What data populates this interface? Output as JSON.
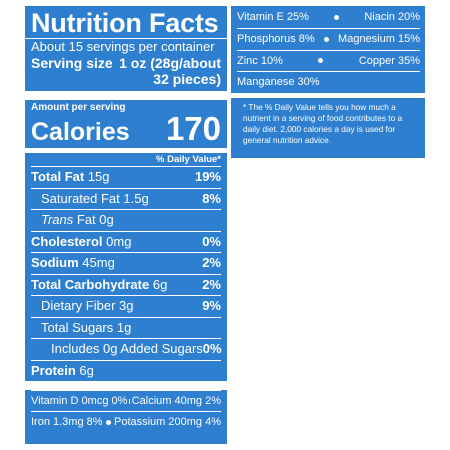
{
  "title": "Nutrition Facts",
  "servings": "About 15 servings per container",
  "serving_size": {
    "label": "Serving size",
    "value_line1": "1 oz (28g/about",
    "value_line2": "32 pieces)"
  },
  "amount_per_serving": "Amount per serving",
  "calories": {
    "label": "Calories",
    "value": "170"
  },
  "daily_value_header": "% Daily Value*",
  "nutrients": [
    {
      "label": "Total Fat",
      "amount": "15g",
      "dv": "19%"
    },
    {
      "label": "Saturated Fat",
      "amount": "1.5g",
      "dv": "8%"
    },
    {
      "label": "Trans",
      "amount": "Fat 0g",
      "dv": ""
    },
    {
      "label": "Cholesterol",
      "amount": "0mg",
      "dv": "0%"
    },
    {
      "label": "Sodium",
      "amount": "45mg",
      "dv": "2%"
    },
    {
      "label": "Total Carbohydrate",
      "amount": "6g",
      "dv": "2%"
    },
    {
      "label": "Dietary Fiber",
      "amount": "3g",
      "dv": "9%"
    },
    {
      "label": "Total Sugars",
      "amount": "1g",
      "dv": ""
    },
    {
      "label": "Includes 0g Added Sugars",
      "amount": "",
      "dv": "0%"
    },
    {
      "label": "Protein",
      "amount": "6g",
      "dv": ""
    }
  ],
  "vitamins_left": [
    {
      "a": "Vitamin D 0mcg 0%",
      "b": "Calcium 40mg 2%"
    },
    {
      "a": "Iron 1.3mg 8%",
      "b": "Potassium 200mg 4%"
    }
  ],
  "vitamins_right": [
    {
      "a": "Vitamin E 25%",
      "b": "Niacin 20%"
    },
    {
      "a": "Phosphorus 8%",
      "b": "Magnesium 15%"
    },
    {
      "a": "Zinc 10%",
      "b": "Copper 35%"
    },
    {
      "a": "Manganese 30%",
      "b": ""
    }
  ],
  "footnote": "* The % Daily Value tells you how much a nutrient in a serving of food contributes to a daily diet. 2,000 calories a day is used for general nutrition advice.",
  "colors": {
    "panel_bg": "#2f7fd0",
    "text": "#ffffff"
  }
}
